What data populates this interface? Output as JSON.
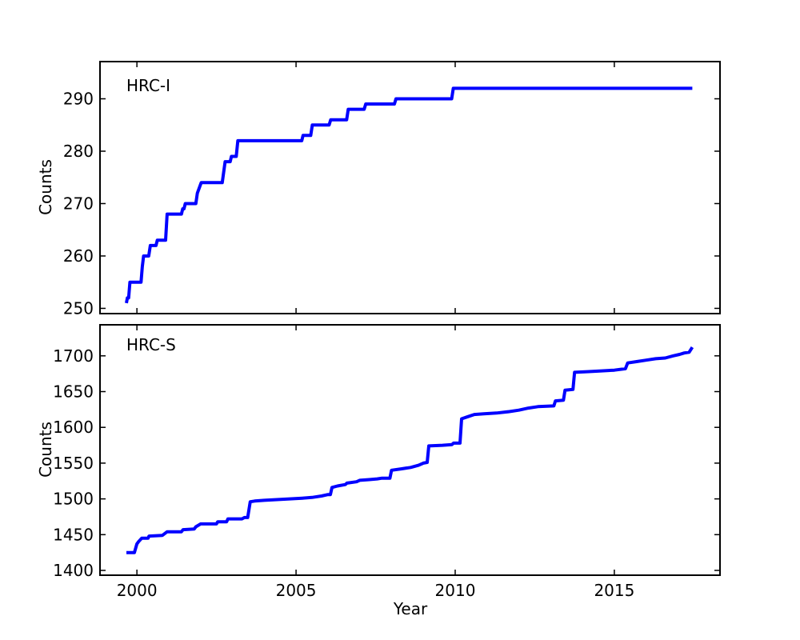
{
  "figure": {
    "background": "#ffffff",
    "frame_color": "#000000",
    "text_color": "#000000"
  },
  "chart_data": [
    {
      "type": "line",
      "style": "cumulative-step",
      "title": "HRC-I",
      "ylabel": "Counts",
      "xlabel": "",
      "line_color": "#0000ff",
      "xlim": [
        1998.84,
        2018.32
      ],
      "ylim": [
        249.0,
        297.1
      ],
      "xticks": [
        2000,
        2005,
        2010,
        2015
      ],
      "xtick_labels": [],
      "yticks": [
        250,
        260,
        270,
        280,
        290
      ],
      "legend": "none",
      "grid": false,
      "x": [
        1999.67,
        1999.7,
        1999.74,
        1999.78,
        2000.13,
        2000.17,
        2000.21,
        2000.37,
        2000.42,
        2000.6,
        2000.64,
        2000.9,
        2000.95,
        2001.4,
        2001.44,
        2001.48,
        2001.52,
        2001.85,
        2001.9,
        2002.02,
        2002.68,
        2002.77,
        2002.93,
        2002.97,
        2003.12,
        2003.17,
        2005.18,
        2005.22,
        2005.46,
        2005.51,
        2006.04,
        2006.09,
        2006.59,
        2006.64,
        2007.14,
        2007.19,
        2008.09,
        2008.14,
        2009.89,
        2009.94,
        2017.45
      ],
      "y": [
        251,
        252,
        252,
        255,
        255,
        258,
        260,
        260,
        262,
        262,
        263,
        263,
        268,
        268,
        269,
        269,
        270,
        270,
        272,
        274,
        274,
        278,
        278,
        279,
        279,
        282,
        282,
        283,
        283,
        285,
        285,
        286,
        286,
        288,
        288,
        289,
        289,
        290,
        290,
        292,
        292
      ]
    },
    {
      "type": "line",
      "style": "cumulative-step",
      "title": "HRC-S",
      "ylabel": "Counts",
      "xlabel": "Year",
      "line_color": "#0000ff",
      "xlim": [
        1998.84,
        2018.32
      ],
      "ylim": [
        1393.3,
        1743.4
      ],
      "xticks": [
        2000,
        2005,
        2010,
        2015
      ],
      "xtick_labels": [
        "2000",
        "2005",
        "2010",
        "2015"
      ],
      "yticks": [
        1400,
        1450,
        1500,
        1550,
        1600,
        1650,
        1700
      ],
      "legend": "none",
      "grid": false,
      "x": [
        1999.67,
        1999.92,
        2000.0,
        2000.05,
        2000.15,
        2000.35,
        2000.38,
        2000.8,
        2000.95,
        2001.4,
        2001.45,
        2001.8,
        2001.85,
        2002.0,
        2002.5,
        2002.54,
        2002.82,
        2002.86,
        2003.3,
        2003.38,
        2003.48,
        2003.56,
        2003.7,
        2004.0,
        2004.4,
        2004.8,
        2005.2,
        2005.5,
        2005.8,
        2006.0,
        2006.08,
        2006.13,
        2006.3,
        2006.55,
        2006.6,
        2006.9,
        2007.0,
        2007.3,
        2007.55,
        2007.7,
        2007.95,
        2008.0,
        2008.3,
        2008.6,
        2008.85,
        2009.0,
        2009.12,
        2009.17,
        2009.6,
        2009.9,
        2009.95,
        2010.15,
        2010.2,
        2010.4,
        2010.6,
        2010.9,
        2011.3,
        2011.7,
        2012.0,
        2012.3,
        2012.6,
        2013.1,
        2013.15,
        2013.4,
        2013.45,
        2013.7,
        2013.75,
        2014.2,
        2014.6,
        2015.0,
        2015.35,
        2015.42,
        2015.7,
        2016.0,
        2016.3,
        2016.6,
        2016.85,
        2017.05,
        2017.2,
        2017.35,
        2017.45
      ],
      "y": [
        1425,
        1425,
        1437,
        1440,
        1445,
        1445,
        1448,
        1449,
        1454,
        1454,
        1457,
        1458,
        1461,
        1465,
        1465,
        1468,
        1468,
        1472,
        1472,
        1474,
        1474,
        1496,
        1497,
        1498,
        1499,
        1500,
        1501,
        1502,
        1504,
        1506,
        1506,
        1516,
        1518,
        1520,
        1522,
        1524,
        1526,
        1527,
        1528,
        1529,
        1529,
        1540,
        1542,
        1544,
        1547,
        1550,
        1551,
        1574,
        1575,
        1576,
        1578,
        1578,
        1612,
        1615,
        1618,
        1619,
        1620,
        1622,
        1624,
        1627,
        1629,
        1630,
        1637,
        1638,
        1652,
        1653,
        1677,
        1678,
        1679,
        1680,
        1682,
        1690,
        1692,
        1694,
        1696,
        1697,
        1700,
        1702,
        1704,
        1705,
        1712
      ]
    }
  ]
}
